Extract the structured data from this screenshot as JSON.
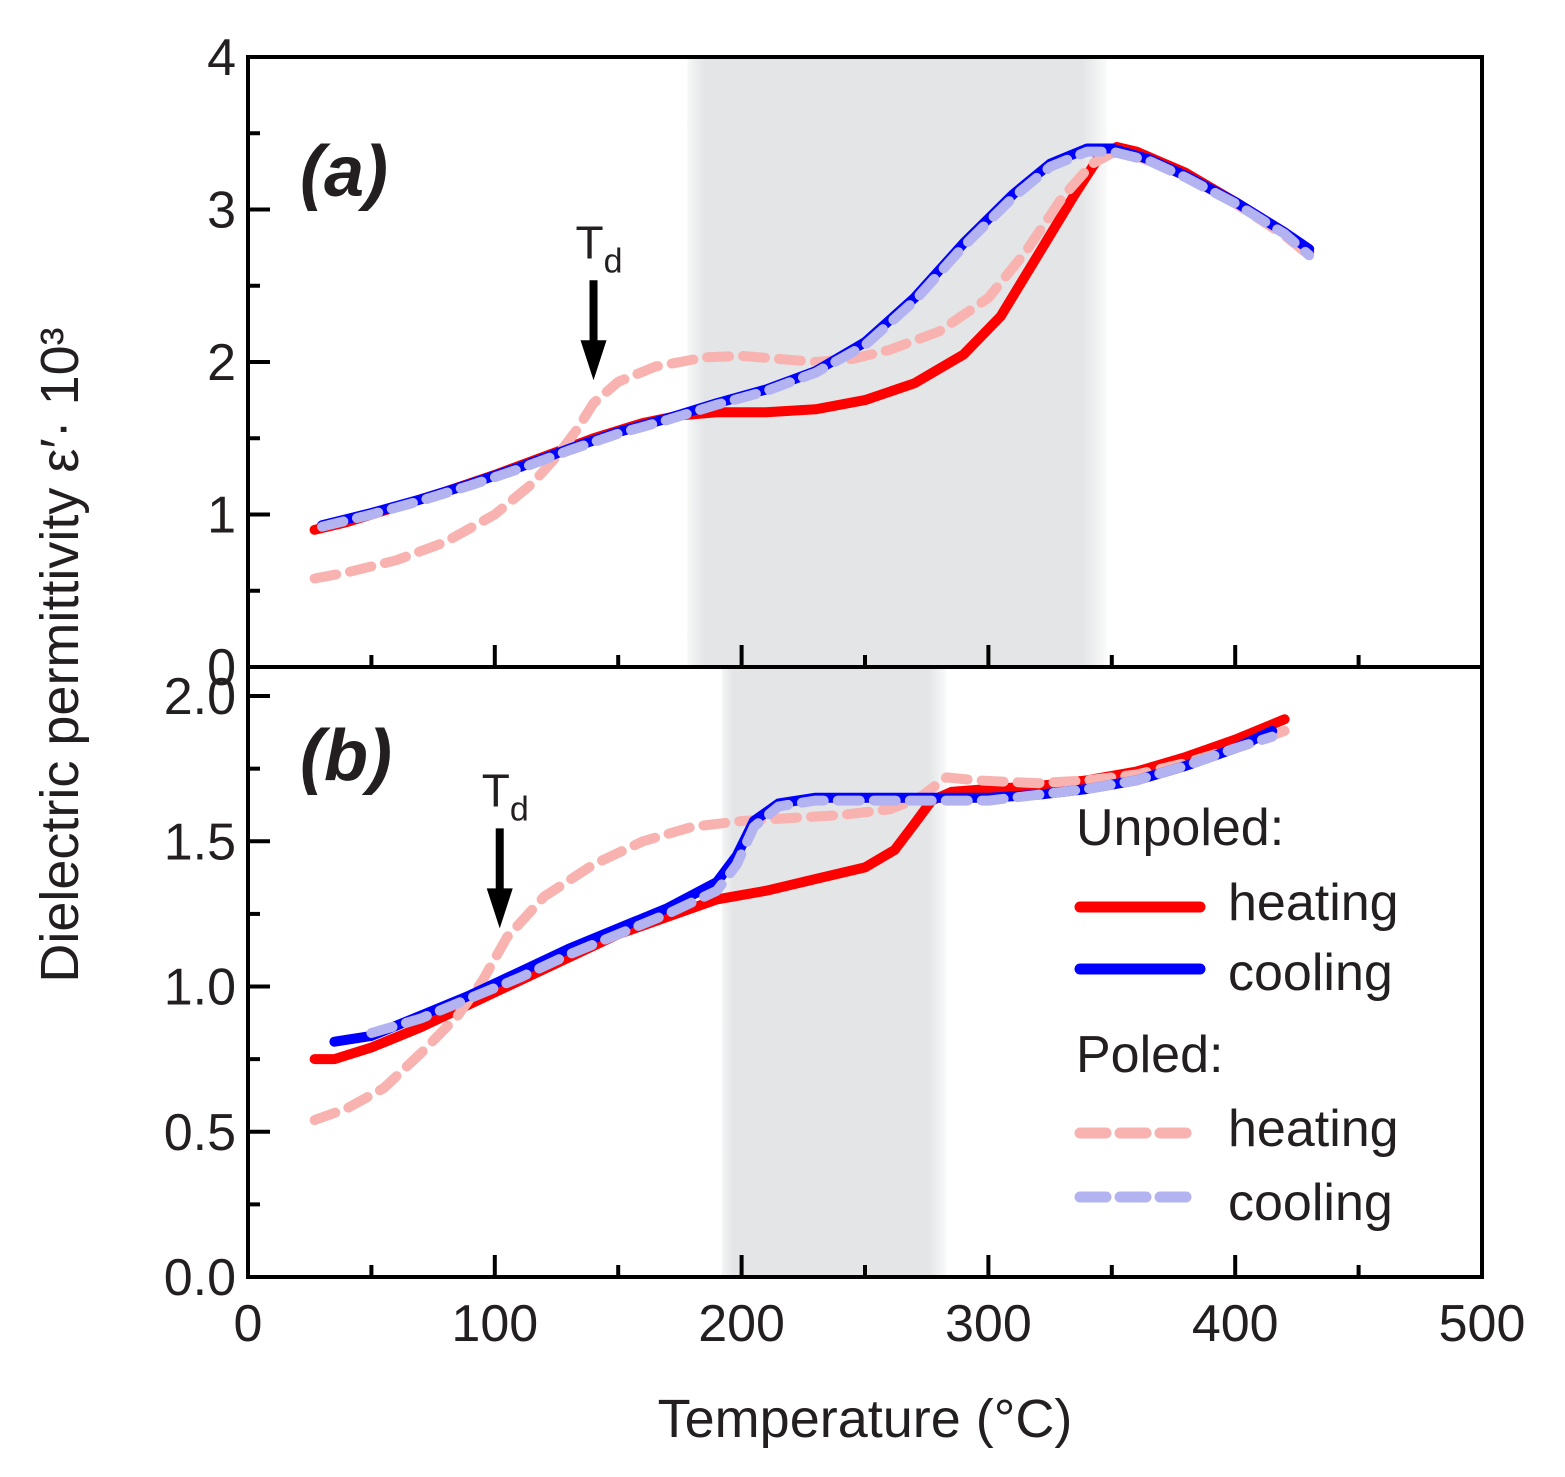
{
  "colors": {
    "unpoled_heating": "#ff0000",
    "unpoled_cooling": "#0000ff",
    "poled_heating": "#f8b3b0",
    "poled_cooling": "#b3b3f2",
    "shade": "#d9dbdc",
    "axis": "#000000"
  },
  "chart_data": [
    {
      "panel": "a",
      "type": "line",
      "label": "(a)",
      "xlim": [
        0,
        500
      ],
      "ylim": [
        0,
        4
      ],
      "y_ticks": [
        0,
        1,
        2,
        3,
        4
      ],
      "y_tick_labels": [
        "0",
        "1",
        "2",
        "3",
        "4"
      ],
      "y_minor_ticks": [
        0.5,
        1.5,
        2.5,
        3.5
      ],
      "shaded_region": [
        178,
        348
      ],
      "annotation": {
        "text": "T",
        "subscript": "d",
        "x": 140,
        "y_tip": 1.88
      },
      "series": [
        {
          "name": "Unpoled heating",
          "color_key": "unpoled_heating",
          "dashed": false,
          "width": 10,
          "points": [
            [
              27,
              0.9
            ],
            [
              40,
              0.95
            ],
            [
              60,
              1.05
            ],
            [
              80,
              1.15
            ],
            [
              100,
              1.26
            ],
            [
              120,
              1.38
            ],
            [
              140,
              1.5
            ],
            [
              160,
              1.6
            ],
            [
              175,
              1.65
            ],
            [
              190,
              1.67
            ],
            [
              210,
              1.67
            ],
            [
              230,
              1.69
            ],
            [
              250,
              1.75
            ],
            [
              270,
              1.86
            ],
            [
              290,
              2.05
            ],
            [
              305,
              2.3
            ],
            [
              320,
              2.7
            ],
            [
              335,
              3.1
            ],
            [
              345,
              3.35
            ],
            [
              352,
              3.41
            ],
            [
              360,
              3.38
            ],
            [
              380,
              3.24
            ],
            [
              400,
              3.05
            ],
            [
              420,
              2.85
            ],
            [
              430,
              2.72
            ]
          ]
        },
        {
          "name": "Unpoled cooling",
          "color_key": "unpoled_cooling",
          "dashed": false,
          "width": 10,
          "points": [
            [
              30,
              0.93
            ],
            [
              50,
              1.01
            ],
            [
              70,
              1.1
            ],
            [
              90,
              1.2
            ],
            [
              110,
              1.31
            ],
            [
              130,
              1.43
            ],
            [
              150,
              1.54
            ],
            [
              170,
              1.63
            ],
            [
              190,
              1.73
            ],
            [
              210,
              1.82
            ],
            [
              230,
              1.94
            ],
            [
              250,
              2.13
            ],
            [
              270,
              2.42
            ],
            [
              290,
              2.78
            ],
            [
              310,
              3.1
            ],
            [
              325,
              3.3
            ],
            [
              340,
              3.4
            ],
            [
              350,
              3.4
            ],
            [
              365,
              3.33
            ],
            [
              380,
              3.22
            ],
            [
              400,
              3.05
            ],
            [
              420,
              2.85
            ],
            [
              430,
              2.74
            ]
          ]
        },
        {
          "name": "Poled heating",
          "color_key": "poled_heating",
          "dashed": true,
          "width": 10,
          "points": [
            [
              27,
              0.58
            ],
            [
              40,
              0.62
            ],
            [
              60,
              0.7
            ],
            [
              80,
              0.82
            ],
            [
              100,
              1.0
            ],
            [
              115,
              1.2
            ],
            [
              125,
              1.38
            ],
            [
              133,
              1.55
            ],
            [
              140,
              1.73
            ],
            [
              150,
              1.87
            ],
            [
              165,
              1.97
            ],
            [
              185,
              2.03
            ],
            [
              200,
              2.04
            ],
            [
              215,
              2.02
            ],
            [
              230,
              2.0
            ],
            [
              245,
              2.02
            ],
            [
              260,
              2.08
            ],
            [
              280,
              2.2
            ],
            [
              300,
              2.42
            ],
            [
              315,
              2.72
            ],
            [
              330,
              3.08
            ],
            [
              342,
              3.3
            ],
            [
              350,
              3.37
            ],
            [
              360,
              3.35
            ],
            [
              380,
              3.22
            ],
            [
              400,
              3.04
            ],
            [
              420,
              2.83
            ],
            [
              430,
              2.7
            ]
          ]
        },
        {
          "name": "Poled cooling",
          "color_key": "poled_cooling",
          "dashed": true,
          "width": 10,
          "points": [
            [
              30,
              0.92
            ],
            [
              50,
              1.0
            ],
            [
              70,
              1.09
            ],
            [
              90,
              1.19
            ],
            [
              110,
              1.3
            ],
            [
              130,
              1.42
            ],
            [
              150,
              1.53
            ],
            [
              170,
              1.62
            ],
            [
              190,
              1.72
            ],
            [
              210,
              1.81
            ],
            [
              230,
              1.93
            ],
            [
              250,
              2.11
            ],
            [
              270,
              2.4
            ],
            [
              290,
              2.76
            ],
            [
              310,
              3.08
            ],
            [
              325,
              3.28
            ],
            [
              340,
              3.38
            ],
            [
              350,
              3.38
            ],
            [
              365,
              3.32
            ],
            [
              380,
              3.21
            ],
            [
              400,
              3.04
            ],
            [
              420,
              2.84
            ],
            [
              430,
              2.7
            ]
          ]
        }
      ]
    },
    {
      "panel": "b",
      "type": "line",
      "label": "(b)",
      "xlim": [
        0,
        500
      ],
      "ylim": [
        0,
        2.1
      ],
      "x_ticks": [
        0,
        100,
        200,
        300,
        400,
        500
      ],
      "x_tick_labels": [
        "0",
        "100",
        "200",
        "300",
        "400",
        "500"
      ],
      "x_minor_ticks": [
        50,
        150,
        250,
        350,
        450
      ],
      "y_ticks": [
        0,
        0.5,
        1.0,
        1.5,
        2.0
      ],
      "y_tick_labels": [
        "0.0",
        "0.5",
        "1.0",
        "1.5",
        "2.0"
      ],
      "y_minor_ticks": [
        0.25,
        0.75,
        1.25,
        1.75
      ],
      "shaded_region": [
        192,
        283
      ],
      "annotation": {
        "text": "T",
        "subscript": "d",
        "x": 102,
        "y_tip": 1.2
      },
      "series": [
        {
          "name": "Unpoled heating",
          "color_key": "unpoled_heating",
          "dashed": false,
          "width": 10,
          "points": [
            [
              27,
              0.75
            ],
            [
              35,
              0.75
            ],
            [
              50,
              0.79
            ],
            [
              70,
              0.86
            ],
            [
              90,
              0.94
            ],
            [
              110,
              1.02
            ],
            [
              130,
              1.1
            ],
            [
              150,
              1.18
            ],
            [
              170,
              1.24
            ],
            [
              190,
              1.3
            ],
            [
              210,
              1.33
            ],
            [
              230,
              1.37
            ],
            [
              250,
              1.41
            ],
            [
              262,
              1.47
            ],
            [
              270,
              1.56
            ],
            [
              277,
              1.64
            ],
            [
              285,
              1.67
            ],
            [
              300,
              1.68
            ],
            [
              320,
              1.69
            ],
            [
              340,
              1.71
            ],
            [
              360,
              1.74
            ],
            [
              380,
              1.79
            ],
            [
              400,
              1.85
            ],
            [
              420,
              1.92
            ]
          ]
        },
        {
          "name": "Unpoled cooling",
          "color_key": "unpoled_cooling",
          "dashed": false,
          "width": 10,
          "points": [
            [
              35,
              0.81
            ],
            [
              50,
              0.83
            ],
            [
              70,
              0.9
            ],
            [
              90,
              0.97
            ],
            [
              110,
              1.05
            ],
            [
              130,
              1.13
            ],
            [
              150,
              1.2
            ],
            [
              170,
              1.27
            ],
            [
              190,
              1.36
            ],
            [
              198,
              1.45
            ],
            [
              205,
              1.57
            ],
            [
              215,
              1.63
            ],
            [
              230,
              1.65
            ],
            [
              250,
              1.65
            ],
            [
              270,
              1.65
            ],
            [
              300,
              1.65
            ],
            [
              320,
              1.66
            ],
            [
              340,
              1.68
            ],
            [
              360,
              1.71
            ],
            [
              380,
              1.76
            ],
            [
              400,
              1.82
            ],
            [
              415,
              1.88
            ]
          ]
        },
        {
          "name": "Poled heating",
          "color_key": "poled_heating",
          "dashed": true,
          "width": 10,
          "points": [
            [
              27,
              0.54
            ],
            [
              40,
              0.58
            ],
            [
              55,
              0.65
            ],
            [
              70,
              0.77
            ],
            [
              85,
              0.9
            ],
            [
              95,
              1.02
            ],
            [
              105,
              1.17
            ],
            [
              120,
              1.31
            ],
            [
              140,
              1.42
            ],
            [
              160,
              1.5
            ],
            [
              180,
              1.55
            ],
            [
              200,
              1.57
            ],
            [
              220,
              1.58
            ],
            [
              240,
              1.59
            ],
            [
              260,
              1.61
            ],
            [
              272,
              1.65
            ],
            [
              283,
              1.72
            ],
            [
              295,
              1.71
            ],
            [
              320,
              1.7
            ],
            [
              340,
              1.71
            ],
            [
              360,
              1.73
            ],
            [
              380,
              1.77
            ],
            [
              400,
              1.82
            ],
            [
              420,
              1.88
            ]
          ]
        },
        {
          "name": "Poled cooling",
          "color_key": "poled_cooling",
          "dashed": true,
          "width": 10,
          "points": [
            [
              50,
              0.84
            ],
            [
              70,
              0.89
            ],
            [
              90,
              0.96
            ],
            [
              110,
              1.03
            ],
            [
              130,
              1.11
            ],
            [
              150,
              1.18
            ],
            [
              170,
              1.25
            ],
            [
              190,
              1.33
            ],
            [
              198,
              1.42
            ],
            [
              205,
              1.55
            ],
            [
              215,
              1.62
            ],
            [
              230,
              1.64
            ],
            [
              250,
              1.64
            ],
            [
              270,
              1.64
            ],
            [
              300,
              1.64
            ],
            [
              320,
              1.66
            ],
            [
              340,
              1.68
            ],
            [
              360,
              1.71
            ],
            [
              380,
              1.76
            ],
            [
              400,
              1.82
            ],
            [
              415,
              1.86
            ]
          ]
        }
      ]
    }
  ],
  "axes": {
    "xlabel": "Temperature (°C)",
    "ylabel": "Dielectric permittivity ε′· 10³"
  },
  "legend": {
    "groups": [
      {
        "title": "Unpoled:",
        "items": [
          {
            "label": "heating",
            "color_key": "unpoled_heating",
            "dashed": false
          },
          {
            "label": "cooling",
            "color_key": "unpoled_cooling",
            "dashed": false
          }
        ]
      },
      {
        "title": "Poled:",
        "items": [
          {
            "label": "heating",
            "color_key": "poled_heating",
            "dashed": true
          },
          {
            "label": "cooling",
            "color_key": "poled_cooling",
            "dashed": true
          }
        ]
      }
    ]
  }
}
